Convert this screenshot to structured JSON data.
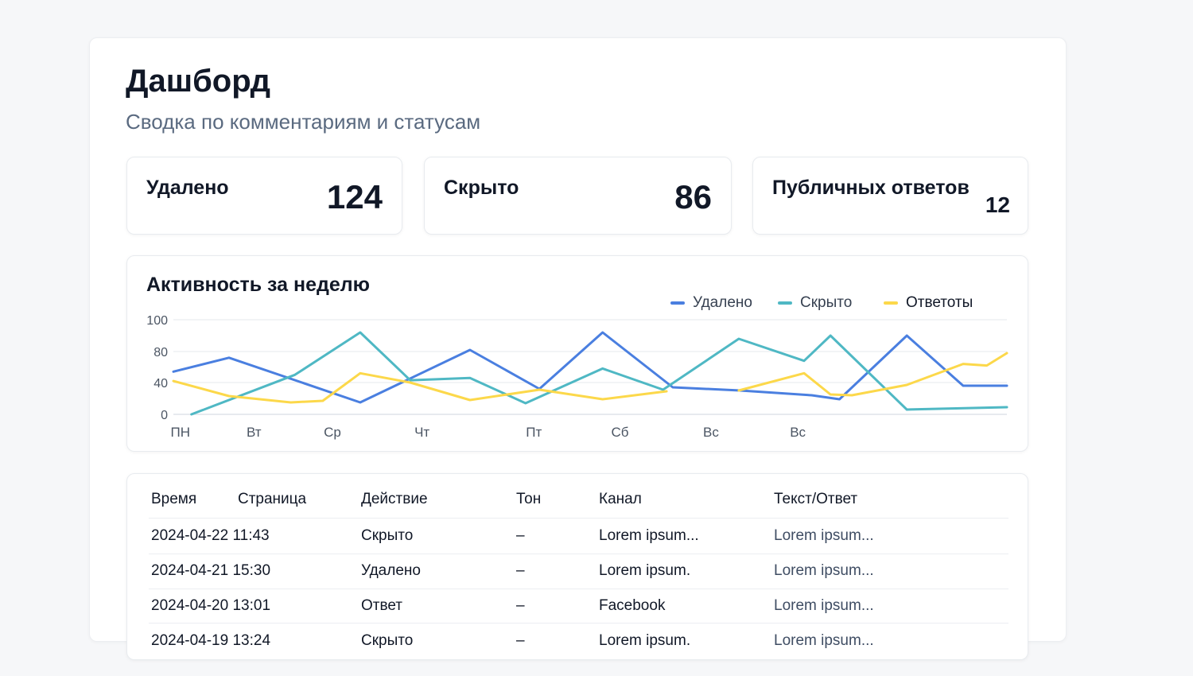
{
  "header": {
    "title": "Дашборд",
    "subtitle": "Сводка по комментариям и статусам"
  },
  "stats": [
    {
      "label": "Удалено",
      "value": "124"
    },
    {
      "label": "Скрыто",
      "value": "86"
    },
    {
      "label": "Публичных ответов",
      "value": "12"
    }
  ],
  "chart_data": {
    "type": "line",
    "title": "Активность за неделю",
    "y_ticks": [
      0,
      40,
      80,
      100
    ],
    "x_labels": [
      "ПН",
      "Вт",
      "Ср",
      "Чт",
      "Пт",
      "Сб",
      "Вс",
      "Вс"
    ],
    "x_label_pos": [
      0.1,
      1.16,
      2.29,
      3.58,
      5.19,
      6.43,
      7.74,
      8.99
    ],
    "xlim": [
      0,
      12
    ],
    "ylim": [
      0,
      100
    ],
    "grid": true,
    "legend": "top-right",
    "series": [
      {
        "name": "Удалено",
        "color": "#4a7fe0",
        "x": [
          0,
          0.8,
          2.69,
          4.27,
          5.27,
          6.18,
          7.19,
          8.16,
          9.19,
          9.59,
          10.56,
          11.37,
          12
        ],
        "y": [
          54,
          72,
          15,
          81,
          32,
          92,
          34,
          30,
          24,
          19,
          90,
          36,
          36
        ]
      },
      {
        "name": "Скрыто",
        "color": "#4fb8c4",
        "x": [
          0.26,
          1.75,
          2.69,
          3.41,
          4.27,
          5.07,
          6.18,
          7.05,
          8.14,
          9.08,
          9.46,
          10.56,
          12
        ],
        "y": [
          0,
          50,
          92,
          43,
          46,
          14,
          58,
          31,
          88,
          68,
          90,
          6,
          9
        ]
      },
      {
        "name": "Ответоты",
        "color": "#fcd84a",
        "x": [
          0,
          0.8,
          1.69,
          2.15,
          2.69,
          3.41,
          4.27,
          5.27,
          6.18,
          7.1,
          7.6,
          8.14,
          9.08,
          9.46,
          9.77,
          10.56,
          11.37,
          11.71,
          12
        ],
        "y": [
          42,
          23,
          15,
          17,
          52,
          40,
          18,
          31,
          19,
          29,
          null,
          30,
          52,
          25,
          24,
          37,
          64,
          62,
          78
        ]
      }
    ]
  },
  "table": {
    "headers": [
      "Время",
      "Страница",
      "Действие",
      "Тон",
      "Канал",
      "Текст/Ответ"
    ],
    "rows": [
      [
        "2024-04-22 11:43",
        "",
        "Скрыто",
        "–",
        "Lorem ipsum...",
        "Lorem ipsum..."
      ],
      [
        "2024-04-21 15:30",
        "",
        "Удалено",
        "–",
        "Lorem ipsum.",
        "Lorem ipsum..."
      ],
      [
        "2024-04-20 13:01",
        "",
        "Ответ",
        "–",
        "Facebook",
        "Lorem ipsum..."
      ],
      [
        "2024-04-19 13:24",
        "",
        "Скрыто",
        "–",
        "Lorem ipsum.",
        "Lorem ipsum..."
      ]
    ]
  }
}
